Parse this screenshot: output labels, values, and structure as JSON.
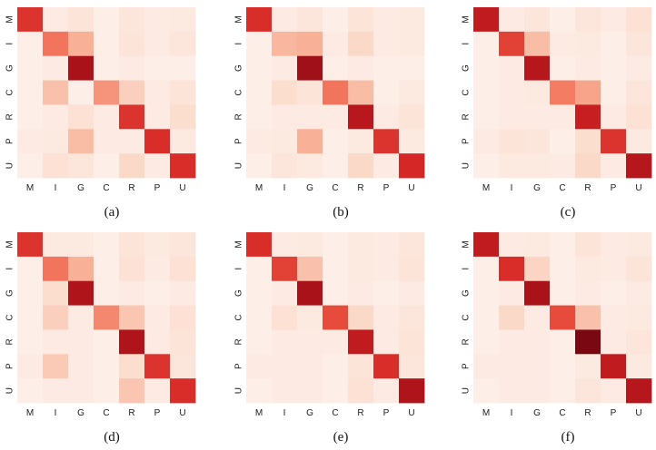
{
  "colors": {
    "low": "#fdf3ef",
    "high": "#7a0812",
    "background": "#ffffff"
  },
  "chart_data": [
    {
      "type": "heatmap",
      "caption": "(a)",
      "x_tick_labels": [
        "M",
        "I",
        "G",
        "C",
        "R",
        "P",
        "U"
      ],
      "y_tick_labels": [
        "M",
        "I",
        "G",
        "C",
        "R",
        "P",
        "U"
      ],
      "values": [
        [
          0.7,
          0.06,
          0.12,
          0.04,
          0.1,
          0.06,
          0.08
        ],
        [
          0.04,
          0.5,
          0.35,
          0.04,
          0.12,
          0.06,
          0.1
        ],
        [
          0.04,
          0.06,
          0.9,
          0.04,
          0.06,
          0.04,
          0.04
        ],
        [
          0.04,
          0.28,
          0.04,
          0.42,
          0.22,
          0.06,
          0.12
        ],
        [
          0.04,
          0.06,
          0.14,
          0.06,
          0.7,
          0.06,
          0.16
        ],
        [
          0.06,
          0.08,
          0.3,
          0.06,
          0.06,
          0.72,
          0.08
        ],
        [
          0.04,
          0.14,
          0.1,
          0.04,
          0.18,
          0.06,
          0.72
        ]
      ]
    },
    {
      "type": "heatmap",
      "caption": "(b)",
      "x_tick_labels": [
        "M",
        "I",
        "G",
        "C",
        "R",
        "P",
        "U"
      ],
      "y_tick_labels": [
        "M",
        "I",
        "G",
        "C",
        "R",
        "P",
        "U"
      ],
      "values": [
        [
          0.72,
          0.06,
          0.1,
          0.04,
          0.12,
          0.06,
          0.08
        ],
        [
          0.04,
          0.32,
          0.35,
          0.06,
          0.18,
          0.06,
          0.08
        ],
        [
          0.04,
          0.06,
          0.92,
          0.04,
          0.06,
          0.04,
          0.04
        ],
        [
          0.04,
          0.16,
          0.12,
          0.5,
          0.3,
          0.04,
          0.08
        ],
        [
          0.04,
          0.06,
          0.06,
          0.06,
          0.85,
          0.06,
          0.12
        ],
        [
          0.06,
          0.08,
          0.35,
          0.04,
          0.08,
          0.7,
          0.08
        ],
        [
          0.04,
          0.1,
          0.08,
          0.04,
          0.18,
          0.06,
          0.74
        ]
      ]
    },
    {
      "type": "heatmap",
      "caption": "(c)",
      "x_tick_labels": [
        "M",
        "I",
        "G",
        "C",
        "R",
        "P",
        "U"
      ],
      "y_tick_labels": [
        "M",
        "I",
        "G",
        "C",
        "R",
        "P",
        "U"
      ],
      "values": [
        [
          0.82,
          0.06,
          0.1,
          0.04,
          0.1,
          0.06,
          0.14
        ],
        [
          0.04,
          0.65,
          0.3,
          0.06,
          0.08,
          0.04,
          0.1
        ],
        [
          0.04,
          0.06,
          0.86,
          0.04,
          0.06,
          0.04,
          0.06
        ],
        [
          0.04,
          0.06,
          0.08,
          0.48,
          0.38,
          0.04,
          0.1
        ],
        [
          0.04,
          0.06,
          0.06,
          0.06,
          0.8,
          0.06,
          0.14
        ],
        [
          0.06,
          0.12,
          0.1,
          0.04,
          0.16,
          0.7,
          0.08
        ],
        [
          0.04,
          0.08,
          0.08,
          0.06,
          0.18,
          0.06,
          0.86
        ]
      ]
    },
    {
      "type": "heatmap",
      "caption": "(d)",
      "x_tick_labels": [
        "M",
        "I",
        "G",
        "C",
        "R",
        "P",
        "U"
      ],
      "y_tick_labels": [
        "M",
        "I",
        "G",
        "C",
        "R",
        "P",
        "U"
      ],
      "values": [
        [
          0.7,
          0.08,
          0.08,
          0.04,
          0.12,
          0.08,
          0.1
        ],
        [
          0.04,
          0.5,
          0.35,
          0.04,
          0.14,
          0.06,
          0.14
        ],
        [
          0.04,
          0.16,
          0.88,
          0.04,
          0.06,
          0.04,
          0.06
        ],
        [
          0.04,
          0.22,
          0.06,
          0.45,
          0.26,
          0.06,
          0.14
        ],
        [
          0.04,
          0.06,
          0.06,
          0.04,
          0.88,
          0.06,
          0.12
        ],
        [
          0.06,
          0.24,
          0.06,
          0.04,
          0.16,
          0.7,
          0.1
        ],
        [
          0.04,
          0.06,
          0.06,
          0.04,
          0.26,
          0.06,
          0.72
        ]
      ]
    },
    {
      "type": "heatmap",
      "caption": "(e)",
      "x_tick_labels": [
        "M",
        "I",
        "G",
        "C",
        "R",
        "P",
        "U"
      ],
      "y_tick_labels": [
        "M",
        "I",
        "G",
        "C",
        "R",
        "P",
        "U"
      ],
      "values": [
        [
          0.72,
          0.06,
          0.08,
          0.04,
          0.08,
          0.06,
          0.1
        ],
        [
          0.04,
          0.65,
          0.28,
          0.04,
          0.08,
          0.06,
          0.12
        ],
        [
          0.04,
          0.06,
          0.9,
          0.04,
          0.06,
          0.04,
          0.06
        ],
        [
          0.04,
          0.14,
          0.08,
          0.62,
          0.18,
          0.06,
          0.1
        ],
        [
          0.04,
          0.06,
          0.06,
          0.06,
          0.82,
          0.06,
          0.12
        ],
        [
          0.06,
          0.06,
          0.06,
          0.04,
          0.12,
          0.72,
          0.1
        ],
        [
          0.04,
          0.06,
          0.06,
          0.04,
          0.14,
          0.06,
          0.88
        ]
      ]
    },
    {
      "type": "heatmap",
      "caption": "(f)",
      "x_tick_labels": [
        "M",
        "I",
        "G",
        "C",
        "R",
        "P",
        "U"
      ],
      "y_tick_labels": [
        "M",
        "I",
        "G",
        "C",
        "R",
        "P",
        "U"
      ],
      "values": [
        [
          0.82,
          0.06,
          0.08,
          0.04,
          0.12,
          0.06,
          0.08
        ],
        [
          0.04,
          0.72,
          0.2,
          0.04,
          0.08,
          0.06,
          0.12
        ],
        [
          0.04,
          0.06,
          0.9,
          0.04,
          0.06,
          0.04,
          0.06
        ],
        [
          0.04,
          0.18,
          0.06,
          0.62,
          0.28,
          0.06,
          0.08
        ],
        [
          0.04,
          0.06,
          0.06,
          0.04,
          1.0,
          0.06,
          0.1
        ],
        [
          0.06,
          0.06,
          0.06,
          0.04,
          0.08,
          0.82,
          0.08
        ],
        [
          0.04,
          0.06,
          0.06,
          0.04,
          0.1,
          0.06,
          0.86
        ]
      ]
    }
  ]
}
